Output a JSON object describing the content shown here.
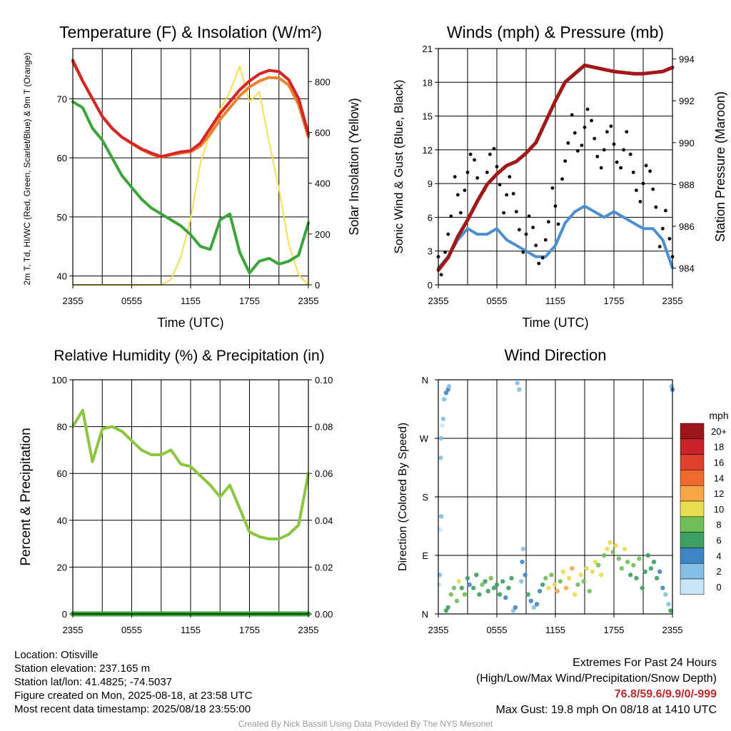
{
  "chart_data": [
    {
      "type": "line",
      "title": "Temperature (F) & Insolation (W/m²)",
      "xlabel": "Time (UTC)",
      "ylabel": "2m T, Td, HI/WC (Red, Green, Scarlet/Blue) & 9m T (Orange)",
      "y2label": "Solar Insolation (Yellow)",
      "x_ticks": [
        "2355",
        "0555",
        "1155",
        "1755",
        "2355"
      ],
      "ylim": [
        38.5,
        78.5
      ],
      "y_ticks": [
        40,
        50,
        60,
        70
      ],
      "y2lim": [
        0,
        930
      ],
      "y2_ticks": [
        0,
        200,
        400,
        600,
        800
      ],
      "x_hours": [
        0,
        1,
        2,
        3,
        4,
        5,
        6,
        7,
        8,
        9,
        10,
        11,
        12,
        13,
        14,
        15,
        16,
        17,
        18,
        19,
        20,
        21,
        22,
        23,
        24
      ],
      "series": [
        {
          "name": "2m T",
          "color": "#d62728",
          "axis": "left",
          "values": [
            76.5,
            73,
            70,
            67,
            65,
            63.5,
            62.5,
            61.5,
            60.8,
            60.2,
            60.6,
            61,
            61.2,
            62.5,
            65,
            67.5,
            69.5,
            71.5,
            73,
            74.2,
            74.8,
            74.6,
            73.2,
            70,
            64
          ]
        },
        {
          "name": "9m T",
          "color": "#f07f2c",
          "axis": "left",
          "values": [
            76.2,
            73,
            70,
            67,
            65,
            63.5,
            62.4,
            61.4,
            60.6,
            60.1,
            60.5,
            60.8,
            61,
            62,
            64,
            66.5,
            68.5,
            70.5,
            72,
            73,
            73.6,
            73.5,
            72.3,
            69,
            63.5
          ]
        },
        {
          "name": "HI/WC",
          "color": "#c81e24",
          "axis": "left",
          "values": [
            76.5,
            73,
            70,
            67,
            65,
            63.5,
            62.5,
            61.5,
            60.8,
            60.2,
            60.6,
            61,
            61.2,
            62.5,
            65,
            67.5,
            69.5,
            71.5,
            73,
            74.2,
            74.8,
            74.6,
            73.2,
            70,
            64
          ]
        },
        {
          "name": "Td",
          "color": "#3aa63a",
          "axis": "left",
          "values": [
            69.5,
            68.5,
            65,
            63,
            60,
            57,
            55,
            53,
            51.5,
            50.5,
            49.5,
            48.5,
            47,
            45,
            44.5,
            49.5,
            50.5,
            44,
            40.5,
            42.5,
            43,
            42,
            42.5,
            43.5,
            49
          ]
        },
        {
          "name": "Insolation",
          "color": "#f5df4d",
          "axis": "right",
          "values": [
            0,
            0,
            0,
            0,
            0,
            0,
            0,
            0,
            0,
            0,
            20,
            110,
            260,
            480,
            600,
            690,
            760,
            860,
            720,
            760,
            560,
            380,
            160,
            40,
            0
          ]
        }
      ]
    },
    {
      "type": "line",
      "title": "Winds (mph) & Pressure (mb)",
      "xlabel": "Time (UTC)",
      "ylabel": "Sonic Wind & Gust (Blue, Black)",
      "y2label": "Station Pressure (Maroon)",
      "x_ticks": [
        "2355",
        "0555",
        "1155",
        "1755",
        "2355"
      ],
      "ylim": [
        0,
        21
      ],
      "y_ticks": [
        0,
        3,
        6,
        9,
        12,
        15,
        18,
        21
      ],
      "y2lim": [
        983.2,
        994.5
      ],
      "y2_ticks": [
        984,
        986,
        988,
        990,
        992,
        994
      ],
      "x_hours": [
        0,
        1,
        2,
        3,
        4,
        5,
        6,
        7,
        8,
        9,
        10,
        11,
        12,
        13,
        14,
        15,
        16,
        17,
        18,
        19,
        20,
        21,
        22,
        23,
        24
      ],
      "series": [
        {
          "name": "Sonic Wind",
          "color": "#4a90d0",
          "axis": "left",
          "values": [
            1.5,
            2.5,
            4.0,
            5.0,
            4.5,
            4.5,
            5.0,
            4.0,
            3.5,
            3.0,
            2.5,
            2.5,
            3.5,
            5.5,
            6.5,
            7.0,
            6.5,
            6.0,
            6.5,
            6.0,
            5.5,
            5.0,
            5.0,
            4.0,
            1.5
          ]
        },
        {
          "name": "Gust",
          "color": "#000000",
          "axis": "left",
          "values": [
            2.5,
            4.5,
            8.0,
            10.0,
            9.5,
            10.0,
            10.5,
            8.0,
            6.5,
            4.5,
            3.5,
            4.0,
            7.0,
            11.0,
            13.5,
            14.0,
            13.0,
            12.0,
            12.5,
            12.0,
            10.0,
            9.0,
            8.5,
            5.0,
            2.5
          ]
        },
        {
          "name": "Station Pressure",
          "color": "#a01818",
          "axis": "right",
          "values": [
            983.9,
            984.5,
            985.5,
            986.3,
            987.2,
            988.0,
            988.5,
            988.9,
            989.1,
            989.5,
            990.0,
            991.0,
            992.0,
            992.9,
            993.3,
            993.7,
            993.6,
            993.5,
            993.4,
            993.35,
            993.3,
            993.3,
            993.35,
            993.4,
            993.6
          ]
        }
      ]
    },
    {
      "type": "line",
      "title": "Relative Humidity (%) & Precipitation (in)",
      "xlabel": "",
      "ylabel": "Percent & Precipitation",
      "x_ticks": [
        "2355",
        "0555",
        "1155",
        "1755",
        "2355"
      ],
      "ylim": [
        0,
        100
      ],
      "y_ticks": [
        0,
        20,
        40,
        60,
        80,
        100
      ],
      "y2lim": [
        0,
        0.1
      ],
      "y2_ticks": [
        "0.00",
        "0.02",
        "0.04",
        "0.06",
        "0.08",
        "0.10"
      ],
      "x_hours": [
        0,
        1,
        2,
        3,
        4,
        5,
        6,
        7,
        8,
        9,
        10,
        11,
        12,
        13,
        14,
        15,
        16,
        17,
        18,
        19,
        20,
        21,
        22,
        23,
        24
      ],
      "series": [
        {
          "name": "Relative Humidity",
          "color": "#8cc63f",
          "axis": "left",
          "values": [
            80,
            87,
            65,
            79,
            80,
            78,
            74,
            70,
            68,
            68,
            70,
            64,
            63,
            59,
            55,
            50,
            55,
            45,
            35,
            33,
            32,
            32,
            34,
            38,
            60
          ]
        },
        {
          "name": "Precipitation",
          "color": "#3aa63a",
          "axis": "right",
          "values": [
            0,
            0,
            0,
            0,
            0,
            0,
            0,
            0,
            0,
            0,
            0,
            0,
            0,
            0,
            0,
            0,
            0,
            0,
            0,
            0,
            0,
            0,
            0,
            0,
            0
          ]
        }
      ]
    },
    {
      "type": "scatter",
      "title": "Wind Direction",
      "xlabel": "",
      "ylabel": "Direction (Colored By Speed)",
      "x_ticks": [
        "2355",
        "0555",
        "1155",
        "1755",
        "2355"
      ],
      "y_ticks": [
        "N",
        "E",
        "S",
        "W",
        "N"
      ],
      "ylim": [
        0,
        360
      ],
      "colorbar": {
        "title": "mph",
        "labels": [
          "0",
          "2",
          "4",
          "6",
          "8",
          "10",
          "12",
          "14",
          "16",
          "18",
          "20+"
        ],
        "colors": [
          "#c6e6f7",
          "#85bfe6",
          "#3f85c4",
          "#3ba060",
          "#70bd55",
          "#e8dc50",
          "#f6a748",
          "#f0692e",
          "#e0402e",
          "#c8232a",
          "#9c1519"
        ]
      },
      "points": [
        [
          0.1,
          45,
          0
        ],
        [
          0.15,
          60,
          1
        ],
        [
          0.2,
          130,
          0
        ],
        [
          0.3,
          150,
          1
        ],
        [
          0.25,
          240,
          1
        ],
        [
          0.3,
          270,
          1
        ],
        [
          0.4,
          290,
          0
        ],
        [
          0.5,
          300,
          1
        ],
        [
          0.6,
          330,
          1
        ],
        [
          0.8,
          340,
          2
        ],
        [
          1.0,
          345,
          2
        ],
        [
          1.1,
          350,
          1
        ],
        [
          0.8,
          5,
          3
        ],
        [
          1.0,
          10,
          3
        ],
        [
          1.3,
          30,
          4
        ],
        [
          1.6,
          40,
          4
        ],
        [
          1.9,
          20,
          4
        ],
        [
          2.1,
          50,
          5
        ],
        [
          2.4,
          40,
          3
        ],
        [
          2.7,
          30,
          4
        ],
        [
          3.0,
          55,
          3
        ],
        [
          3.2,
          45,
          2
        ],
        [
          3.6,
          40,
          3
        ],
        [
          3.9,
          60,
          3
        ],
        [
          4.2,
          30,
          3
        ],
        [
          4.5,
          45,
          4
        ],
        [
          4.8,
          50,
          3
        ],
        [
          5.1,
          35,
          3
        ],
        [
          5.4,
          55,
          4
        ],
        [
          5.7,
          40,
          3
        ],
        [
          6.0,
          45,
          3
        ],
        [
          6.3,
          30,
          3
        ],
        [
          6.6,
          50,
          3
        ],
        [
          6.9,
          25,
          2
        ],
        [
          7.2,
          40,
          3
        ],
        [
          7.5,
          55,
          3
        ],
        [
          7.7,
          5,
          1
        ],
        [
          7.9,
          10,
          2
        ],
        [
          8.1,
          355,
          1
        ],
        [
          8.3,
          345,
          1
        ],
        [
          8.5,
          50,
          1
        ],
        [
          8.6,
          80,
          2
        ],
        [
          8.7,
          100,
          1
        ],
        [
          8.9,
          60,
          2
        ],
        [
          9.2,
          30,
          3
        ],
        [
          9.5,
          20,
          2
        ],
        [
          9.8,
          10,
          1
        ],
        [
          10.1,
          15,
          2
        ],
        [
          10.4,
          35,
          2
        ],
        [
          10.7,
          45,
          3
        ],
        [
          11.0,
          55,
          4
        ],
        [
          11.3,
          40,
          5
        ],
        [
          11.6,
          60,
          4
        ],
        [
          11.9,
          45,
          5
        ],
        [
          12.2,
          35,
          6
        ],
        [
          12.5,
          50,
          4
        ],
        [
          12.8,
          65,
          5
        ],
        [
          13.1,
          40,
          6
        ],
        [
          13.4,
          55,
          5
        ],
        [
          13.7,
          70,
          6
        ],
        [
          14.0,
          30,
          5
        ],
        [
          14.3,
          45,
          4
        ],
        [
          14.6,
          60,
          5
        ],
        [
          14.9,
          50,
          4
        ],
        [
          15.2,
          70,
          5
        ],
        [
          15.5,
          35,
          4
        ],
        [
          15.8,
          65,
          5
        ],
        [
          16.1,
          80,
          5
        ],
        [
          16.4,
          75,
          4
        ],
        [
          16.7,
          60,
          5
        ],
        [
          17.0,
          90,
          4
        ],
        [
          17.3,
          100,
          5
        ],
        [
          17.6,
          110,
          5
        ],
        [
          17.9,
          95,
          4
        ],
        [
          18.2,
          105,
          5
        ],
        [
          18.5,
          85,
          4
        ],
        [
          18.8,
          70,
          4
        ],
        [
          19.1,
          100,
          5
        ],
        [
          19.4,
          80,
          4
        ],
        [
          19.7,
          60,
          3
        ],
        [
          20.0,
          75,
          4
        ],
        [
          20.3,
          55,
          3
        ],
        [
          20.6,
          85,
          4
        ],
        [
          20.9,
          40,
          3
        ],
        [
          21.2,
          65,
          3
        ],
        [
          21.5,
          90,
          3
        ],
        [
          21.8,
          70,
          3
        ],
        [
          22.1,
          80,
          3
        ],
        [
          22.4,
          55,
          3
        ],
        [
          22.7,
          65,
          2
        ],
        [
          23.0,
          40,
          2
        ],
        [
          23.3,
          30,
          1
        ],
        [
          23.6,
          15,
          1
        ],
        [
          23.8,
          5,
          3
        ],
        [
          23.9,
          350,
          1
        ],
        [
          24.0,
          345,
          2
        ]
      ]
    }
  ],
  "info": {
    "location": "Location: Otisville",
    "elevation": "Station elevation: 237.165 m",
    "latlon": "Station lat/lon: 41.4825; -74.5037",
    "created": "Figure created on Mon, 2025-08-18, at 23:58 UTC",
    "recent": "Most recent data timestamp: 2025/08/18 23:55:00"
  },
  "extremes": {
    "title": "Extremes For Past 24 Hours",
    "legend": "(High/Low/Max Wind/Precipitation/Snow Depth)",
    "values": "76.8/59.6/9.9/0/-999",
    "gust": "Max Gust: 19.8 mph On 08/18 at 1410 UTC"
  },
  "credit": "Created By Nick Bassill Using Data Provided By The NYS Mesonet"
}
